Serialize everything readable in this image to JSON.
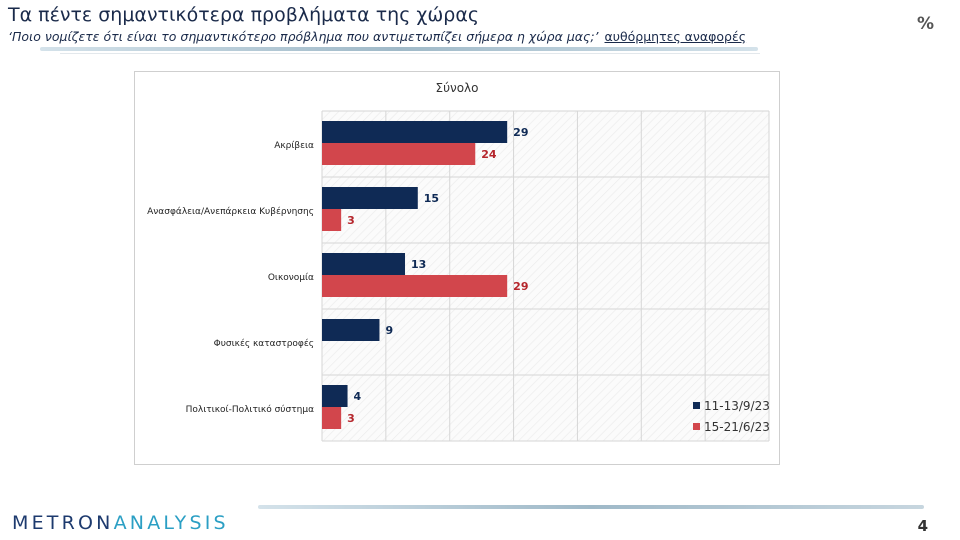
{
  "header": {
    "title": "Τα πέντε σημαντικότερα προβλήματα της χώρας",
    "subtitle_main": "‘Ποιο νομίζετε ότι είναι το σημαντικότερο πρόβλημα που αντιμετωπίζει σήμερα η χώρα μας;’",
    "subtitle_tail": "αυθόρμητες αναφορές",
    "unit": "%"
  },
  "footer": {
    "logo_part1": "METRON",
    "logo_part2": "ANALYSIS",
    "page_number": "4"
  },
  "colors": {
    "series1": "#0f2a55",
    "series2": "#d2464c",
    "label1": "#0f2a55",
    "label2": "#b5262c"
  },
  "chart_data": {
    "type": "bar",
    "orientation": "horizontal",
    "title": "Σύνολο",
    "categories": [
      "Ακρίβεια",
      "Ανασφάλεια/Ανεπάρκεια Κυβέρνησης",
      "Οικονομία",
      "Φυσικές καταστροφές",
      "Πολιτικοί-Πολιτικό σύστημα"
    ],
    "series": [
      {
        "name": "11-13/9/23",
        "values": [
          29,
          15,
          13,
          9,
          4
        ]
      },
      {
        "name": "15-21/6/23",
        "values": [
          24,
          3,
          29,
          null,
          3
        ]
      }
    ],
    "xlim": [
      0,
      70
    ],
    "grid": true,
    "legend_position": "bottom-right"
  }
}
